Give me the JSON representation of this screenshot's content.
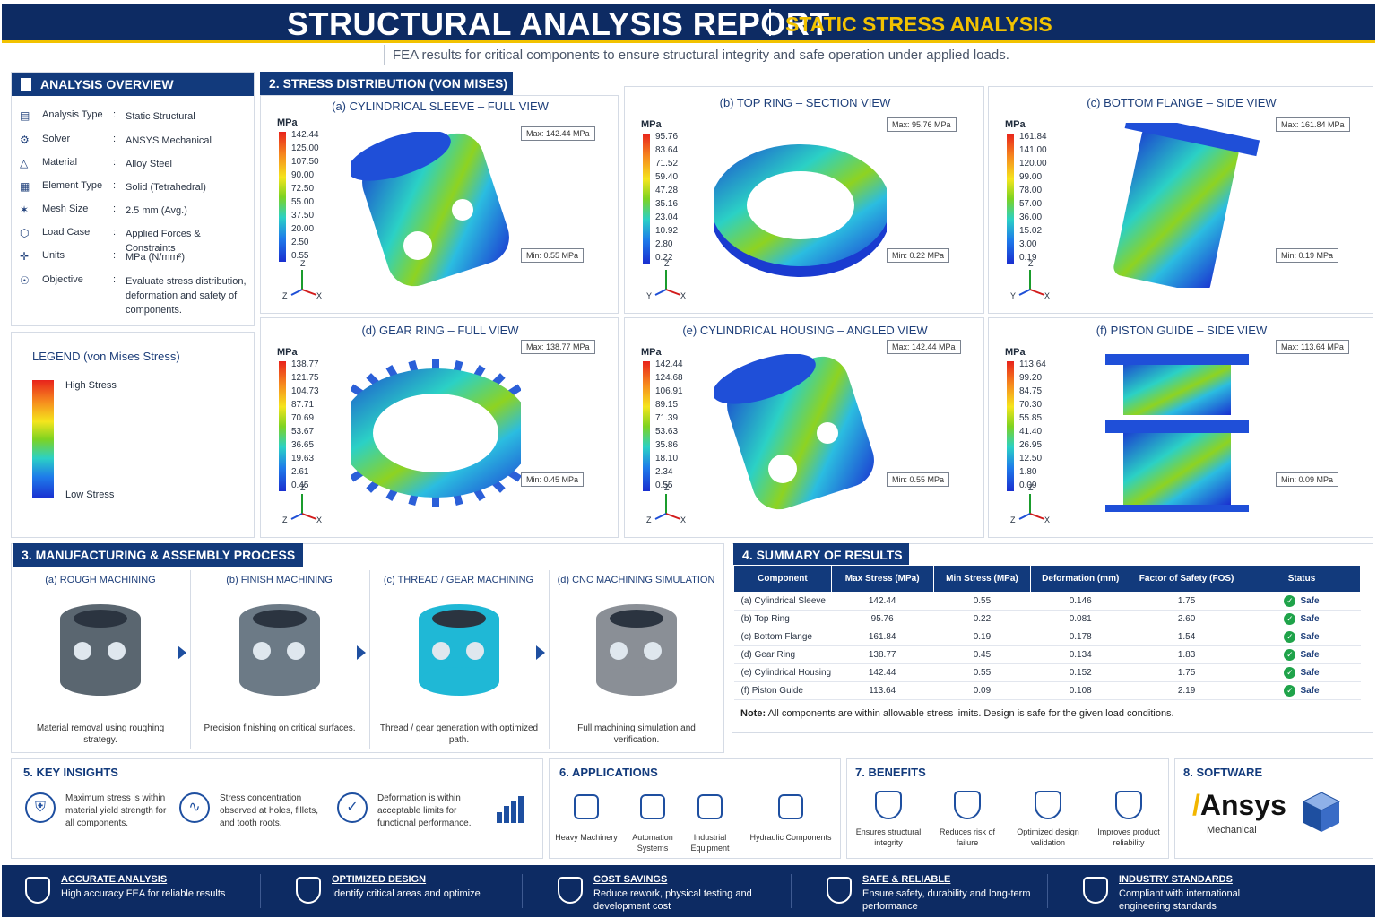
{
  "header": {
    "title": "STRUCTURAL ANALYSIS REPORT",
    "subtitle_tag": "STATIC STRESS ANALYSIS",
    "description": "FEA results for critical components to ensure structural integrity and safe operation under applied loads."
  },
  "overview": {
    "title": "ANALYSIS OVERVIEW",
    "rows": [
      {
        "key": "Analysis Type",
        "value": "Static Structural",
        "icon": "clipboard-icon"
      },
      {
        "key": "Solver",
        "value": "ANSYS Mechanical",
        "icon": "gear-icon"
      },
      {
        "key": "Material",
        "value": "Alloy Steel",
        "icon": "cube-icon"
      },
      {
        "key": "Element Type",
        "value": "Solid (Tetrahedral)",
        "icon": "grid-icon"
      },
      {
        "key": "Mesh Size",
        "value": "2.5 mm (Avg.)",
        "icon": "mesh-icon"
      },
      {
        "key": "Load Case",
        "value": "Applied Forces & Constraints",
        "icon": "load-icon"
      },
      {
        "key": "Units",
        "value": "MPa (N/mm²)",
        "icon": "axes-icon"
      },
      {
        "key": "Objective",
        "value": "Evaluate stress distribution, deformation and safety of components.",
        "icon": "target-icon"
      }
    ]
  },
  "legend": {
    "title": "LEGEND (von Mises Stress)",
    "high": "High Stress",
    "low": "Low Stress"
  },
  "stress": {
    "title": "2.  STRESS DISTRIBUTION (VON MISES)",
    "unit": "MPa",
    "views": [
      {
        "title": "(a) CYLINDRICAL SLEEVE – FULL VIEW",
        "scale": [
          "142.44",
          "125.00",
          "107.50",
          "90.00",
          "72.50",
          "55.00",
          "37.50",
          "20.00",
          "2.50",
          "0.55"
        ],
        "max": "Max: 142.44 MPa",
        "min": "Min: 0.55 MPa",
        "axes": [
          "Z",
          "Z",
          "X"
        ]
      },
      {
        "title": "(b) TOP RING – SECTION VIEW",
        "scale": [
          "95.76",
          "83.64",
          "71.52",
          "59.40",
          "47.28",
          "35.16",
          "23.04",
          "10.92",
          "2.80",
          "0.22"
        ],
        "max": "Max: 95.76 MPa",
        "min": "Min: 0.22 MPa",
        "axes": [
          "Z",
          "Y",
          "X"
        ]
      },
      {
        "title": "(c) BOTTOM FLANGE – SIDE VIEW",
        "scale": [
          "161.84",
          "141.00",
          "120.00",
          "99.00",
          "78.00",
          "57.00",
          "36.00",
          "15.02",
          "3.00",
          "0.19"
        ],
        "max": "Max: 161.84 MPa",
        "min": "Min: 0.19 MPa",
        "axes": [
          "Z",
          "Y",
          "X"
        ]
      },
      {
        "title": "(d) GEAR RING – FULL VIEW",
        "scale": [
          "138.77",
          "121.75",
          "104.73",
          "87.71",
          "70.69",
          "53.67",
          "36.65",
          "19.63",
          "2.61",
          "0.45"
        ],
        "max": "Max: 138.77 MPa",
        "min": "Min: 0.45 MPa",
        "axes": [
          "Z",
          "Z",
          "X"
        ]
      },
      {
        "title": "(e) CYLINDRICAL HOUSING – ANGLED VIEW",
        "scale": [
          "142.44",
          "124.68",
          "106.91",
          "89.15",
          "71.39",
          "53.63",
          "35.86",
          "18.10",
          "2.34",
          "0.55"
        ],
        "max": "Max: 142.44 MPa",
        "min": "Min: 0.55 MPa",
        "axes": [
          "Z",
          "Z",
          "X"
        ]
      },
      {
        "title": "(f) PISTON GUIDE – SIDE VIEW",
        "scale": [
          "113.64",
          "99.20",
          "84.75",
          "70.30",
          "55.85",
          "41.40",
          "26.95",
          "12.50",
          "1.80",
          "0.09"
        ],
        "max": "Max: 113.64 MPa",
        "min": "Min: 0.09 MPa",
        "axes": [
          "Z",
          "Z",
          "X"
        ]
      }
    ]
  },
  "process": {
    "title": "3.  MANUFACTURING & ASSEMBLY PROCESS",
    "steps": [
      {
        "title": "(a) ROUGH MACHINING",
        "caption": "Material removal using roughing strategy."
      },
      {
        "title": "(b) FINISH MACHINING",
        "caption": "Precision finishing on critical surfaces."
      },
      {
        "title": "(c) THREAD / GEAR MACHINING",
        "caption": "Thread / gear generation with optimized path."
      },
      {
        "title": "(d) CNC MACHINING SIMULATION",
        "caption": "Full machining simulation and verification."
      }
    ]
  },
  "summary": {
    "title": "4.  SUMMARY OF RESULTS",
    "headers": [
      "Component",
      "Max Stress (MPa)",
      "Min Stress (MPa)",
      "Deformation (mm)",
      "Factor of Safety (FOS)",
      "Status"
    ],
    "rows": [
      [
        "(a) Cylindrical Sleeve",
        "142.44",
        "0.55",
        "0.146",
        "1.75",
        "Safe"
      ],
      [
        "(b) Top Ring",
        "95.76",
        "0.22",
        "0.081",
        "2.60",
        "Safe"
      ],
      [
        "(c) Bottom Flange",
        "161.84",
        "0.19",
        "0.178",
        "1.54",
        "Safe"
      ],
      [
        "(d) Gear Ring",
        "138.77",
        "0.45",
        "0.134",
        "1.83",
        "Safe"
      ],
      [
        "(e) Cylindrical Housing",
        "142.44",
        "0.55",
        "0.152",
        "1.75",
        "Safe"
      ],
      [
        "(f) Piston Guide",
        "113.64",
        "0.09",
        "0.108",
        "2.19",
        "Safe"
      ]
    ],
    "note_label": "Note:",
    "note": "All components are within allowable stress limits. Design is safe for the given load conditions."
  },
  "insights": {
    "title": "5.  KEY INSIGHTS",
    "items": [
      "Maximum stress is within material yield strength for all components.",
      "Stress concentration observed at holes, fillets, and tooth roots.",
      "Deformation is within acceptable limits for functional performance."
    ]
  },
  "applications": {
    "title": "6.  APPLICATIONS",
    "items": [
      "Heavy Machinery",
      "Automation Systems",
      "Industrial Equipment",
      "Hydraulic Components"
    ]
  },
  "benefits": {
    "title": "7.  BENEFITS",
    "items": [
      "Ensures structural integrity",
      "Reduces risk of failure",
      "Optimized design validation",
      "Improves product reliability"
    ]
  },
  "software": {
    "title": "8.  SOFTWARE",
    "brand": "Ansys",
    "product": "Mechanical"
  },
  "footer": [
    {
      "title": "ACCURATE ANALYSIS",
      "text": "High accuracy FEA for reliable results"
    },
    {
      "title": "OPTIMIZED DESIGN",
      "text": "Identify critical areas and optimize"
    },
    {
      "title": "COST SAVINGS",
      "text": "Reduce rework, physical testing and development cost"
    },
    {
      "title": "SAFE & RELIABLE",
      "text": "Ensure safety, durability and long-term performance"
    },
    {
      "title": "INDUSTRY STANDARDS",
      "text": "Compliant with international engineering standards"
    }
  ],
  "colors": {
    "navy": "#0d2b63",
    "accent": "#f2c200",
    "safe": "#1fa34a"
  }
}
